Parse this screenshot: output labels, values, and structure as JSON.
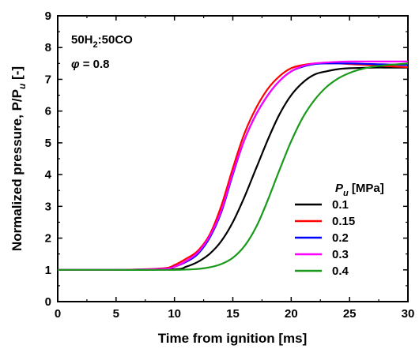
{
  "chart_data": {
    "type": "line",
    "xlabel": "Time from ignition [ms]",
    "ylabel": "Normalized pressure, P/P",
    "ylabel_sub": "u",
    "ylabel_unit": " [-]",
    "xlim": [
      0,
      30
    ],
    "ylim": [
      0,
      9
    ],
    "xticks": [
      "0",
      "5",
      "10",
      "15",
      "20",
      "25",
      "30"
    ],
    "yticks": [
      "0",
      "1",
      "2",
      "3",
      "4",
      "5",
      "6",
      "7",
      "8",
      "9"
    ],
    "annotation": {
      "mixture_main": "50H",
      "mixture_sub": "2",
      "mixture_rest": ":50CO",
      "phi_symbol": "φ",
      "phi_value": " = 0.8"
    },
    "legend": {
      "title_main": "P",
      "title_sub": "u",
      "title_unit": " [MPa]",
      "placement": "right"
    },
    "series": [
      {
        "name": "0.1",
        "color": "#000000",
        "x": [
          0,
          5,
          10,
          11,
          12,
          13,
          14,
          15,
          16,
          17,
          18,
          19,
          20,
          21,
          22,
          23,
          24,
          25,
          26,
          27,
          28,
          29,
          30
        ],
        "y": [
          1.0,
          1.0,
          1.02,
          1.1,
          1.25,
          1.5,
          1.9,
          2.5,
          3.3,
          4.2,
          5.1,
          5.9,
          6.5,
          6.9,
          7.15,
          7.25,
          7.32,
          7.35,
          7.36,
          7.37,
          7.37,
          7.37,
          7.37
        ]
      },
      {
        "name": "0.15",
        "color": "#ff0000",
        "x": [
          0,
          5,
          9,
          10,
          11,
          12,
          13,
          14,
          15,
          16,
          17,
          18,
          19,
          20,
          21,
          22,
          23,
          24,
          25,
          26,
          27,
          28,
          29,
          30
        ],
        "y": [
          1.0,
          1.0,
          1.05,
          1.15,
          1.35,
          1.6,
          2.1,
          3.0,
          4.2,
          5.3,
          6.1,
          6.7,
          7.1,
          7.35,
          7.45,
          7.5,
          7.5,
          7.5,
          7.48,
          7.46,
          7.44,
          7.42,
          7.4,
          7.38
        ]
      },
      {
        "name": "0.2",
        "color": "#0000ff",
        "x": [
          0,
          5,
          9,
          10,
          11,
          12,
          13,
          14,
          15,
          16,
          17,
          18,
          19,
          20,
          21,
          22,
          23,
          24,
          25,
          26,
          27,
          28,
          29,
          30
        ],
        "y": [
          1.0,
          1.0,
          1.03,
          1.1,
          1.25,
          1.5,
          2.0,
          2.8,
          4.0,
          5.1,
          5.9,
          6.5,
          6.95,
          7.25,
          7.4,
          7.48,
          7.5,
          7.5,
          7.5,
          7.49,
          7.48,
          7.47,
          7.46,
          7.45
        ]
      },
      {
        "name": "0.3",
        "color": "#ff00ff",
        "x": [
          0,
          5,
          9,
          10,
          11,
          12,
          13,
          14,
          15,
          16,
          17,
          18,
          19,
          20,
          21,
          22,
          23,
          24,
          25,
          26,
          27,
          28,
          29,
          30
        ],
        "y": [
          1.0,
          1.0,
          1.03,
          1.1,
          1.28,
          1.55,
          2.05,
          2.85,
          4.05,
          5.1,
          5.9,
          6.5,
          6.95,
          7.25,
          7.42,
          7.5,
          7.53,
          7.55,
          7.56,
          7.56,
          7.56,
          7.56,
          7.56,
          7.56
        ]
      },
      {
        "name": "0.4",
        "color": "#1a9a1a",
        "x": [
          0,
          5,
          10,
          12,
          13,
          14,
          15,
          16,
          17,
          18,
          19,
          20,
          21,
          22,
          23,
          24,
          25,
          26,
          27,
          28,
          29,
          30
        ],
        "y": [
          1.0,
          1.0,
          1.0,
          1.03,
          1.08,
          1.18,
          1.38,
          1.75,
          2.35,
          3.2,
          4.15,
          5.05,
          5.8,
          6.35,
          6.75,
          7.02,
          7.2,
          7.32,
          7.4,
          7.44,
          7.47,
          7.5
        ]
      }
    ]
  }
}
